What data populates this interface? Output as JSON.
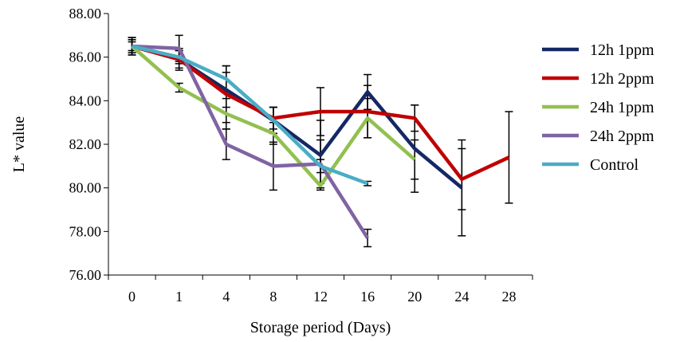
{
  "chart_data": {
    "type": "line",
    "xlabel": "Storage period (Days)",
    "ylabel": "L* value",
    "categories": [
      "0",
      "1",
      "4",
      "8",
      "12",
      "16",
      "20",
      "24",
      "28"
    ],
    "ylim": [
      76,
      88
    ],
    "yticks": [
      "76.00",
      "78.00",
      "80.00",
      "82.00",
      "84.00",
      "86.00",
      "88.00"
    ],
    "grid": false,
    "legend": "right",
    "series": [
      {
        "name": "12h 1ppm",
        "color": "#142864",
        "values": [
          86.5,
          85.9,
          84.5,
          83.1,
          81.5,
          84.4,
          81.8,
          80.0,
          null
        ],
        "errors": [
          0.4,
          0.4,
          0.8,
          0.6,
          1.6,
          0.8,
          2.0,
          2.2,
          null
        ]
      },
      {
        "name": "12h 2ppm",
        "color": "#C00000",
        "values": [
          86.5,
          85.9,
          84.3,
          83.2,
          83.5,
          83.5,
          83.2,
          80.4,
          81.4
        ],
        "errors": [
          0.4,
          0.5,
          1.3,
          0.5,
          1.1,
          1.2,
          0.6,
          1.4,
          2.1
        ]
      },
      {
        "name": "24h 1ppm",
        "color": "#92C050",
        "values": [
          86.5,
          84.6,
          83.4,
          82.5,
          80.1,
          83.2,
          81.3,
          null,
          null
        ],
        "errors": [
          0.3,
          0.2,
          0.7,
          0.5,
          0.1,
          0.9,
          0.9,
          null,
          null
        ]
      },
      {
        "name": "24h 2ppm",
        "color": "#8064A2",
        "values": [
          86.5,
          86.4,
          82.0,
          81.0,
          81.1,
          77.7,
          null,
          null,
          null
        ],
        "errors": [
          0.3,
          0.6,
          0.7,
          1.1,
          1.1,
          0.4,
          null,
          null,
          null
        ]
      },
      {
        "name": "Control",
        "color": "#4BACC6",
        "values": [
          86.5,
          86.0,
          85.0,
          83.1,
          81.0,
          80.2,
          null,
          null,
          null
        ],
        "errors": [
          0.2,
          0.3,
          0.6,
          0.6,
          0.3,
          0.1,
          null,
          null,
          null
        ]
      }
    ]
  }
}
